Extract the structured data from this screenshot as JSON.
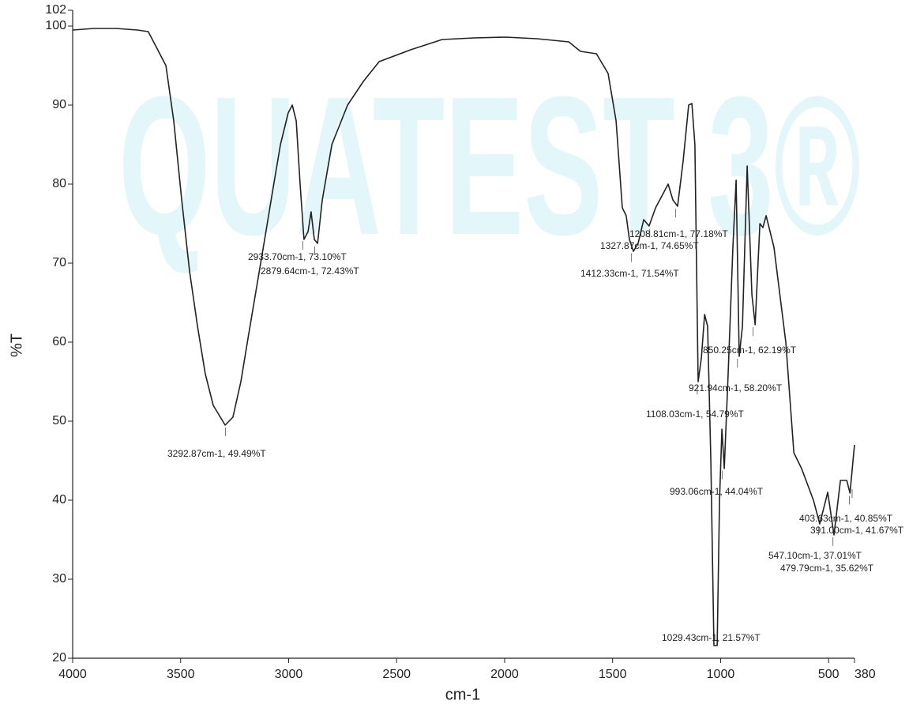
{
  "chart_data": {
    "type": "line",
    "watermark": "QUATEST 3®",
    "x_label": "cm-1",
    "y_label": "%T",
    "xlim": [
      4000,
      380
    ],
    "ylim": [
      20,
      102
    ],
    "xticks": [
      4000,
      3500,
      3000,
      2500,
      2000,
      1500,
      1000,
      500,
      380
    ],
    "yticks": [
      20,
      30,
      40,
      50,
      60,
      70,
      80,
      90,
      100,
      102
    ],
    "color": "#222222",
    "x": [
      4000,
      3900,
      3800,
      3700,
      3650,
      3568,
      3532,
      3495,
      3459,
      3422,
      3386,
      3349,
      3294,
      3258,
      3221,
      3185,
      3148,
      3111,
      3075,
      3038,
      3002,
      2983,
      2965,
      2947,
      2929,
      2910,
      2896,
      2881,
      2866,
      2844,
      2800,
      2727,
      2654,
      2581,
      2435,
      2289,
      2142,
      1996,
      1850,
      1703,
      1649,
      1575,
      1521,
      1484,
      1455,
      1437,
      1422,
      1404,
      1382,
      1356,
      1331,
      1301,
      1272,
      1243,
      1221,
      1199,
      1173,
      1148,
      1133,
      1119,
      1104,
      1089,
      1074,
      1060,
      1045,
      1031,
      1016,
      1005,
      994,
      983,
      965,
      943,
      928,
      914,
      899,
      877,
      855,
      840,
      818,
      804,
      789,
      753,
      698,
      661,
      625,
      570,
      541,
      504,
      475,
      445,
      416,
      401,
      387,
      380
    ],
    "values": [
      99.5,
      99.7,
      99.7,
      99.5,
      99.3,
      95,
      88,
      78,
      69,
      62,
      56,
      52,
      49.5,
      50.5,
      55,
      61,
      67,
      73,
      79,
      85,
      89,
      90,
      88,
      80,
      73,
      74,
      76.5,
      73,
      72.5,
      78,
      85,
      90,
      93,
      95.5,
      97,
      98.3,
      98.5,
      98.6,
      98.4,
      98,
      96.8,
      96.5,
      94,
      88,
      77,
      76,
      73,
      71.5,
      72.5,
      75.5,
      74.7,
      77,
      78.5,
      80,
      78,
      77.2,
      83,
      90,
      90.2,
      85,
      55,
      58,
      63.5,
      62,
      45,
      21.6,
      21.6,
      40,
      49,
      44,
      56,
      72,
      80.5,
      58.2,
      62,
      82.3,
      66,
      62.2,
      75,
      74.5,
      76,
      72,
      60,
      46,
      44,
      40,
      37,
      41,
      35.6,
      42.5,
      42.5,
      40.9,
      45,
      47
    ],
    "annotations": [
      {
        "x": 3292.87,
        "y": 49.49,
        "label": "3292.87cm-1, 49.49%T"
      },
      {
        "x": 2933.7,
        "y": 73.1,
        "label": "2933.70cm-1, 73.10%T"
      },
      {
        "x": 2879.64,
        "y": 72.43,
        "label": "2879.64cm-1, 72.43%T"
      },
      {
        "x": 1208.81,
        "y": 77.18,
        "label": "1208.81cm-1, 77.18%T"
      },
      {
        "x": 1327.87,
        "y": 74.65,
        "label": "1327.87cm-1, 74.65%T"
      },
      {
        "x": 1412.33,
        "y": 71.54,
        "label": "1412.33cm-1, 71.54%T"
      },
      {
        "x": 850.25,
        "y": 62.19,
        "label": "850.25cm-1, 62.19%T"
      },
      {
        "x": 921.94,
        "y": 58.2,
        "label": "921.94cm-1, 58.20%T"
      },
      {
        "x": 1108.03,
        "y": 54.79,
        "label": "1108.03cm-1, 54.79%T"
      },
      {
        "x": 993.06,
        "y": 44.04,
        "label": "993.06cm-1, 44.04%T"
      },
      {
        "x": 403.63,
        "y": 40.85,
        "label": "403.63cm-1, 40.85%T"
      },
      {
        "x": 391.0,
        "y": 41.67,
        "label": "391.00cm-1, 41.67%T"
      },
      {
        "x": 547.1,
        "y": 37.01,
        "label": "547.10cm-1, 37.01%T"
      },
      {
        "x": 479.79,
        "y": 35.62,
        "label": "479.79cm-1, 35.62%T"
      },
      {
        "x": 1029.43,
        "y": 21.57,
        "label": "1029.43cm-1, 21.57%T"
      }
    ]
  }
}
